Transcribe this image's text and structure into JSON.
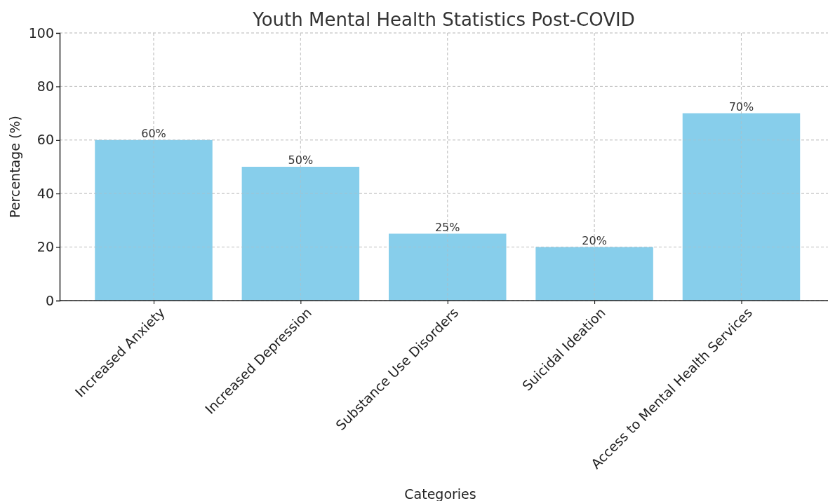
{
  "chart_data": {
    "type": "bar",
    "title": "Youth Mental Health Statistics Post-COVID",
    "xlabel": "Categories",
    "ylabel": "Percentage (%)",
    "categories": [
      "Increased Anxiety",
      "Increased Depression",
      "Substance Use Disorders",
      "Suicidal Ideation",
      "Access to Mental Health Services"
    ],
    "values": [
      60,
      50,
      25,
      20,
      70
    ],
    "value_labels": [
      "60%",
      "50%",
      "25%",
      "20%",
      "70%"
    ],
    "color": "#87ceeb",
    "ylim": [
      0,
      100
    ],
    "yticks": [
      0,
      20,
      40,
      60,
      80,
      100
    ],
    "grid": true
  }
}
